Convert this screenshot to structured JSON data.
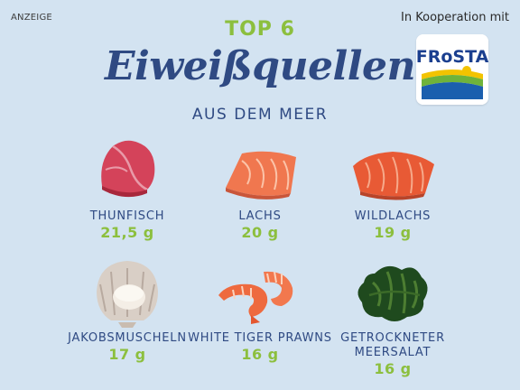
{
  "ad_label": "ANZEIGE",
  "cooperation_text": "In Kooperation mit",
  "brand": {
    "name": "FRoSTA"
  },
  "header": {
    "kicker": "TOP 6",
    "title": "Eiweißquellen",
    "subtitle": "AUS DEM MEER"
  },
  "items": [
    {
      "name": "THUNFISCH",
      "value": "21,5 g",
      "icon": "tuna-icon"
    },
    {
      "name": "LACHS",
      "value": "20 g",
      "icon": "salmon-icon"
    },
    {
      "name": "WILDLACHS",
      "value": "19 g",
      "icon": "wild-salmon-icon"
    },
    {
      "name": "JAKOBSMUSCHELN",
      "value": "17 g",
      "icon": "scallop-icon"
    },
    {
      "name": "WHITE TIGER PRAWNS",
      "value": "16 g",
      "icon": "prawns-icon"
    },
    {
      "name_lines": [
        "GETROCKNETER",
        "MEERSALAT"
      ],
      "value": "16 g",
      "icon": "seaweed-icon"
    }
  ],
  "colors": {
    "background": "#d3e3f1",
    "accent_green": "#8cbf3e",
    "navy": "#2f4a83"
  }
}
